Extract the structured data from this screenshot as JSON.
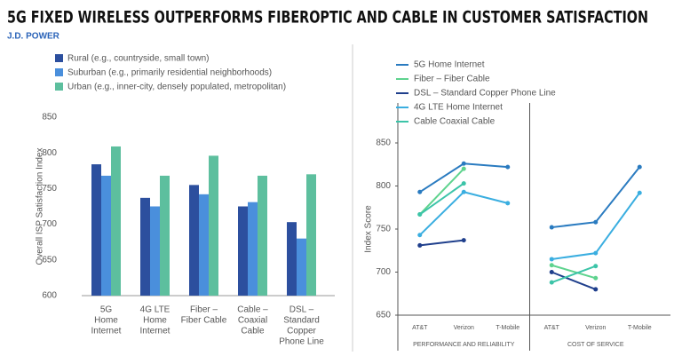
{
  "header": {
    "title": "5G FIXED WIRELESS OUTPERFORMS FIBEROPTIC AND CABLE IN CUSTOMER SATISFACTION",
    "source": "J.D. POWER"
  },
  "chart_data": [
    {
      "type": "bar",
      "y_label": "Overall ISP Satisfaction Index",
      "categories": [
        [
          "5G",
          "Home",
          "Internet"
        ],
        [
          "4G LTE",
          "Home",
          "Internet"
        ],
        [
          "Fiber –",
          "Fiber Cable"
        ],
        [
          "Cable –",
          "Coaxial",
          "Cable"
        ],
        [
          "DSL –",
          "Standard",
          "Copper",
          "Phone Line"
        ]
      ],
      "series": [
        {
          "name": "Rural (e.g., countryside, small town)",
          "color": "#2c4f9e",
          "values": [
            784,
            737,
            755,
            725,
            703
          ]
        },
        {
          "name": "Suburban (e.g., primarily residential neighborhoods)",
          "color": "#4a8fdc",
          "values": [
            768,
            725,
            742,
            731,
            680
          ]
        },
        {
          "name": "Urban (e.g., inner-city, densely populated, metropolitan)",
          "color": "#5dbf9e",
          "values": [
            809,
            768,
            796,
            768,
            770
          ]
        }
      ],
      "ylim": [
        600,
        850
      ],
      "yticks": [
        600,
        650,
        700,
        750,
        800,
        850
      ],
      "grid": false
    },
    {
      "type": "line",
      "y_label": "Index Score",
      "panels": [
        "PERFORMANCE AND RELIABILITY",
        "COST OF SERVICE"
      ],
      "categories": [
        "AT&T",
        "Verizon",
        "T-Mobile",
        "AT&T",
        "Verizon",
        "T-Mobile"
      ],
      "series": [
        {
          "name": "5G Home Internet",
          "color": "#2a7bc0",
          "values": [
            793,
            826,
            822,
            752,
            758,
            822
          ]
        },
        {
          "name": "Fiber – Fiber Cable",
          "color": "#5ed38e",
          "values": [
            767,
            820,
            null,
            708,
            693,
            null
          ]
        },
        {
          "name": "DSL – Standard Copper Phone Line",
          "color": "#1f3f8c",
          "values": [
            731,
            737,
            null,
            700,
            680,
            null
          ]
        },
        {
          "name": "4G LTE Home Internet",
          "color": "#3aaee0",
          "values": [
            743,
            793,
            780,
            715,
            722,
            792
          ]
        },
        {
          "name": "Cable Coaxial Cable",
          "color": "#3cc4a8",
          "values": [
            767,
            803,
            null,
            688,
            707,
            null
          ]
        }
      ],
      "ylim": [
        650,
        850
      ],
      "yticks": [
        650,
        700,
        750,
        800,
        850
      ],
      "grid": false
    }
  ]
}
